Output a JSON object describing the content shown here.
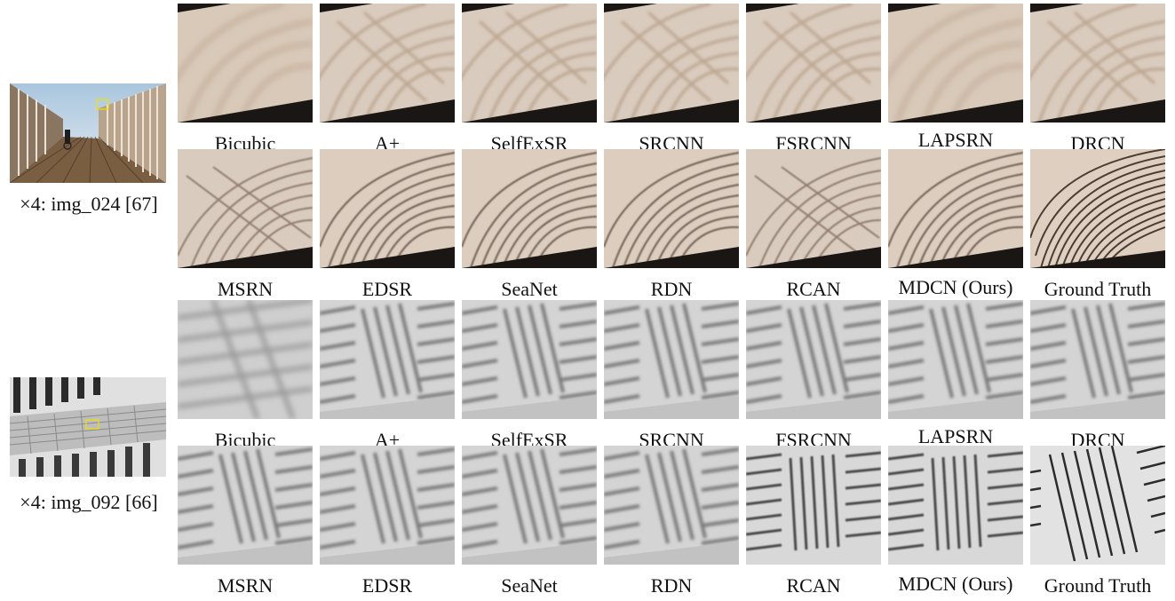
{
  "figure": {
    "examples": [
      {
        "caption": "×4: img_024 [67]",
        "rows": [
          [
            "Bicubic",
            "A+",
            "SelfExSR",
            "SRCNN",
            "FSRCNN",
            "LAPSRN",
            "DRCN"
          ],
          [
            "MSRN",
            "EDSR",
            "SeaNet",
            "RDN",
            "RCAN",
            "MDCN (Ours)",
            "Ground Truth"
          ]
        ]
      },
      {
        "caption": "×4: img_092 [66]",
        "rows": [
          [
            "Bicubic",
            "A+",
            "SelfExSR",
            "SRCNN",
            "FSRCNN",
            "LAPSRN",
            "DRCN"
          ],
          [
            "MSRN",
            "EDSR",
            "SeaNet",
            "RDN",
            "RCAN",
            "MDCN (Ours)",
            "Ground Truth"
          ]
        ]
      }
    ]
  },
  "colors": {
    "zoom_box": "#f0e000",
    "tile_base_1": "#d6c6b6",
    "tile_base_2": "#c8c8c8"
  }
}
